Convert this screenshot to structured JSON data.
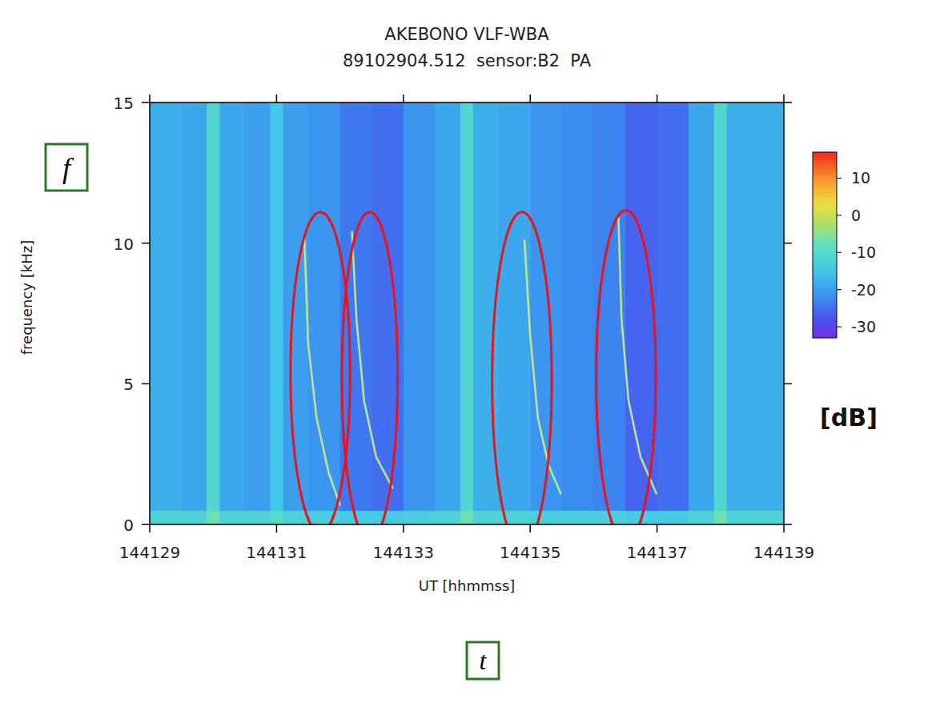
{
  "chart_data": {
    "type": "spectrogram",
    "title": "AKEBONO VLF-WBA",
    "subtitle": "89102904.512  sensor:B2  PA",
    "x_label": "UT [hhmmss]",
    "y_label": "frequency [kHz]",
    "xlim": [
      144129,
      144139
    ],
    "xticks": [
      144129,
      144131,
      144133,
      144135,
      144137,
      144139
    ],
    "ylim": [
      0,
      15
    ],
    "yticks": [
      0,
      5,
      10,
      15
    ],
    "x_bins": [
      144129,
      144129.5,
      144129.9,
      144130.1,
      144130.5,
      144130.9,
      144131.1,
      144131.5,
      144132,
      144132.5,
      144133,
      144133.5,
      144133.9,
      144134.1,
      144134.5,
      144135,
      144135.5,
      144136,
      144136.5,
      144137,
      144137.5,
      144137.9,
      144138.1,
      144138.5,
      144139
    ],
    "y_bins": [
      0,
      0.5,
      15
    ],
    "cells": [
      [
        -12,
        -12,
        -7,
        -12,
        -12,
        -10,
        -12,
        -13,
        -14,
        -14,
        -13,
        -12,
        -7,
        -12,
        -12,
        -13,
        -13,
        -13,
        -14,
        -14,
        -12,
        -7,
        -12,
        -12
      ],
      [
        -18,
        -19,
        -11,
        -19,
        -20,
        -15,
        -20,
        -21,
        -24,
        -25,
        -21,
        -19,
        -11,
        -18,
        -19,
        -21,
        -22,
        -23,
        -26,
        -25,
        -19,
        -11,
        -18,
        -18
      ]
    ],
    "colorbar": {
      "label": "[dB]",
      "range": [
        -33,
        17
      ],
      "ticks": [
        -30,
        -20,
        -10,
        0,
        10
      ]
    },
    "series": [
      {
        "color": "#d0f080",
        "x": [
          144131.44,
          144131.5,
          144131.63,
          144131.82,
          144132.0
        ],
        "values": [
          10.1,
          6.4,
          3.8,
          1.85,
          0.7
        ]
      },
      {
        "color": "#d0f080",
        "x": [
          144132.19,
          144132.26,
          144132.38,
          144132.57,
          144132.83
        ],
        "values": [
          10.4,
          7.3,
          4.4,
          2.4,
          1.3
        ]
      },
      {
        "color": "#d0f080",
        "x": [
          144134.91,
          144135.0,
          144135.12,
          144135.29,
          144135.48
        ],
        "values": [
          10.1,
          6.7,
          3.8,
          2.1,
          1.1
        ]
      },
      {
        "color": "#d0f080",
        "x": [
          144136.39,
          144136.44,
          144136.55,
          144136.74,
          144136.99
        ],
        "values": [
          11.0,
          7.3,
          4.4,
          2.4,
          1.1
        ]
      }
    ],
    "highlights": [
      {
        "x": 144131.69,
        "y": 5.41,
        "rx": 0.47,
        "ry": 5.7,
        "color": "#e8141c"
      },
      {
        "x": 144132.47,
        "y": 5.27,
        "rx": 0.44,
        "ry": 5.84,
        "color": "#e8141c"
      },
      {
        "x": 144134.87,
        "y": 5.13,
        "rx": 0.47,
        "ry": 5.98,
        "color": "#e8141c"
      },
      {
        "x": 144136.51,
        "y": 5.27,
        "rx": 0.47,
        "ry": 5.9,
        "color": "#e8141c"
      }
    ],
    "annotations": {
      "y_symbol": "f",
      "x_symbol": "t",
      "color": "#2a7a2a"
    }
  }
}
